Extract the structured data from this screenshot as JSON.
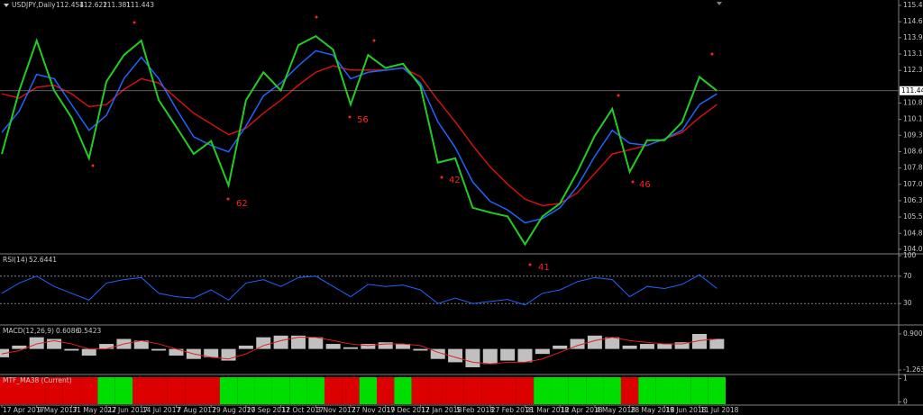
{
  "header": {
    "symbol": "USDJPY,Daily",
    "ohlc": [
      112.454,
      112.622,
      111.381,
      111.443
    ]
  },
  "chart_data": [
    {
      "type": "line",
      "last_price": 111.443,
      "categories": [
        "17 Apr 2017",
        null,
        "9 May 2017",
        null,
        "31 May 2017",
        null,
        "22 Jun 2017",
        null,
        "14 Jul 2017",
        null,
        "7 Aug 2017",
        null,
        "29 Aug 2017",
        null,
        "20 Sep 2017",
        null,
        "12 Oct 2017",
        null,
        "3 Nov 2017",
        null,
        "27 Nov 2017",
        null,
        "19 Dec 2017",
        null,
        "12 Jan 2018",
        null,
        "5 Feb 2018",
        null,
        "27 Feb 2018",
        null,
        "21 Mar 2018",
        null,
        "12 Apr 2018",
        null,
        "4 May 2018",
        null,
        "28 May 2018",
        null,
        "19 Jun 2018",
        null,
        "11 Jul 2018",
        null
      ],
      "series": [
        {
          "color": "#22cc22",
          "values": [
            108.5,
            111.45,
            113.77,
            111.45,
            110.19,
            108.3,
            111.87,
            113.1,
            113.77,
            111.0,
            109.77,
            108.5,
            109.1,
            107.04,
            111.0,
            112.3,
            111.45,
            113.56,
            113.98,
            113.35,
            110.8,
            113.1,
            112.5,
            112.7,
            111.66,
            108.1,
            108.3,
            106.0,
            105.78,
            105.6,
            104.3,
            105.6,
            106.2,
            107.67,
            109.35,
            110.6,
            107.67,
            109.14,
            109.14,
            109.98,
            112.08,
            111.44
          ]
        },
        {
          "color": "#1e64ff",
          "values": [
            109.5,
            110.5,
            112.2,
            112.0,
            110.8,
            109.6,
            110.3,
            112.0,
            113.0,
            112.0,
            110.6,
            109.3,
            108.9,
            108.6,
            109.8,
            111.2,
            111.8,
            112.6,
            113.3,
            113.1,
            112.0,
            112.3,
            112.4,
            112.5,
            111.8,
            110.0,
            108.8,
            107.2,
            106.3,
            105.9,
            105.3,
            105.5,
            106.0,
            107.0,
            108.4,
            109.6,
            109.0,
            108.9,
            109.2,
            109.6,
            110.8,
            111.3
          ]
        },
        {
          "color": "#d01010",
          "values": [
            111.3,
            111.1,
            111.6,
            111.7,
            111.3,
            110.7,
            110.8,
            111.5,
            112.0,
            111.8,
            111.1,
            110.4,
            109.9,
            109.4,
            109.7,
            110.4,
            111.0,
            111.7,
            112.3,
            112.6,
            112.4,
            112.4,
            112.4,
            112.5,
            112.1,
            111.0,
            110.0,
            108.9,
            107.9,
            107.1,
            106.4,
            106.1,
            106.2,
            106.7,
            107.6,
            108.5,
            108.7,
            108.9,
            109.2,
            109.5,
            110.2,
            110.8
          ]
        }
      ],
      "annotations": [
        "62",
        "56",
        "42",
        "41",
        "46"
      ],
      "ylim": [
        103.9,
        115.66
      ],
      "yticks": [
        {
          "value": 115.41,
          "label": "115.410"
        },
        {
          "value": 114.65,
          "label": "114.650"
        },
        {
          "value": 113.91,
          "label": "113.910"
        },
        {
          "value": 113.15,
          "label": "113.150"
        },
        {
          "value": 112.39,
          "label": "112.390"
        },
        {
          "value": 110.87,
          "label": "110.870"
        },
        {
          "value": 110.11,
          "label": "110.110"
        },
        {
          "value": 109.37,
          "label": "109.370"
        },
        {
          "value": 108.61,
          "label": "108.610"
        },
        {
          "value": 107.85,
          "label": "107.850"
        },
        {
          "value": 107.09,
          "label": "107.090"
        },
        {
          "value": 106.33,
          "label": "106.330"
        },
        {
          "value": 105.57,
          "label": "105.570"
        },
        {
          "value": 104.81,
          "label": "104.810"
        },
        {
          "value": 104.07,
          "label": "104.070"
        }
      ]
    },
    {
      "type": "line",
      "title": "RSI(14)",
      "value": 52.6441,
      "color": "#1e64ff",
      "values": [
        45,
        60,
        70,
        55,
        45,
        35,
        60,
        65,
        68,
        45,
        40,
        38,
        50,
        35,
        60,
        65,
        55,
        68,
        70,
        55,
        40,
        58,
        55,
        57,
        50,
        30,
        38,
        30,
        33,
        36,
        28,
        45,
        50,
        62,
        68,
        65,
        40,
        55,
        52,
        58,
        72,
        52
      ],
      "ylim": [
        0,
        100
      ],
      "yticks": [
        100,
        70,
        30
      ]
    },
    {
      "type": "bar",
      "title": "MACD(12,26,9)",
      "value": 0.6086,
      "signal_value": 0.5423,
      "color": "#c0c0c0",
      "values": [
        -0.5,
        0.2,
        0.7,
        0.6,
        -0.1,
        -0.4,
        0.3,
        0.6,
        0.5,
        -0.1,
        -0.4,
        -0.6,
        -0.5,
        -0.7,
        0.2,
        0.7,
        0.8,
        0.8,
        0.7,
        0.3,
        0.1,
        0.3,
        0.4,
        0.3,
        -0.1,
        -0.6,
        -0.8,
        -1.1,
        -0.9,
        -0.7,
        -0.8,
        -0.3,
        0.2,
        0.6,
        0.8,
        0.7,
        0.2,
        0.3,
        0.3,
        0.4,
        0.9,
        0.6
      ],
      "signal": {
        "color": "#e02020",
        "values": [
          -0.3,
          -0.1,
          0.3,
          0.5,
          0.3,
          0.0,
          0.0,
          0.3,
          0.5,
          0.3,
          0.0,
          -0.3,
          -0.5,
          -0.6,
          -0.3,
          0.2,
          0.5,
          0.7,
          0.7,
          0.5,
          0.3,
          0.2,
          0.3,
          0.3,
          0.2,
          -0.2,
          -0.5,
          -0.8,
          -0.9,
          -0.8,
          -0.8,
          -0.6,
          -0.2,
          0.2,
          0.5,
          0.7,
          0.5,
          0.4,
          0.3,
          0.3,
          0.5,
          0.6
        ]
      },
      "ylim": [
        -1.48,
        1.33
      ],
      "yticks": [
        0.9003,
        -1.2638
      ]
    },
    {
      "type": "state",
      "title": "MTF_MA38 (Current)",
      "up_color": "#00dd00",
      "down_color": "#dd0000",
      "values": [
        0,
        0,
        0,
        0,
        0,
        0,
        1,
        1,
        0,
        0,
        0,
        0,
        0,
        1,
        1,
        1,
        1,
        1,
        1,
        0,
        0,
        1,
        0,
        1,
        0,
        0,
        0,
        0,
        0,
        0,
        0,
        1,
        1,
        1,
        1,
        1,
        0,
        1,
        1,
        1,
        1,
        1
      ],
      "ylim": [
        -0.1,
        1.1
      ],
      "yticks": [
        1,
        0
      ]
    }
  ]
}
